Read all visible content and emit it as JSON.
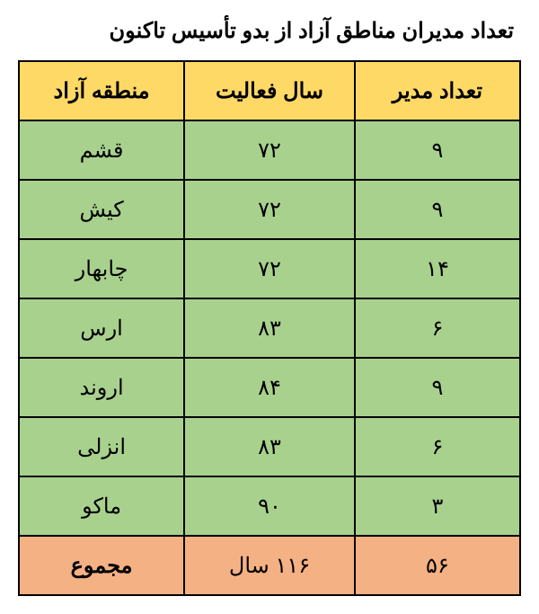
{
  "title": "تعداد مدیران مناطق آزاد از بدو تأسیس تاکنون",
  "columns": {
    "zone": "منطقه آزاد",
    "year": "سال فعالیت",
    "count": "تعداد مدیر"
  },
  "header_bg": "#ffd966",
  "row_bg": "#a9d18e",
  "total_bg": "#f4b183",
  "border_color": "#000000",
  "rows": [
    {
      "zone": "قشم",
      "year": "۷۲",
      "count": "۹"
    },
    {
      "zone": "کیش",
      "year": "۷۲",
      "count": "۹"
    },
    {
      "zone": "چابهار",
      "year": "۷۲",
      "count": "۱۴"
    },
    {
      "zone": "ارس",
      "year": "۸۳",
      "count": "۶"
    },
    {
      "zone": "اروند",
      "year": "۸۴",
      "count": "۹"
    },
    {
      "zone": "انزلی",
      "year": "۸۳",
      "count": "۶"
    },
    {
      "zone": "ماکو",
      "year": "۹۰",
      "count": "۳"
    }
  ],
  "total": {
    "zone": "مجموع",
    "year": "۱۱۶ سال",
    "count": "۵۶"
  }
}
